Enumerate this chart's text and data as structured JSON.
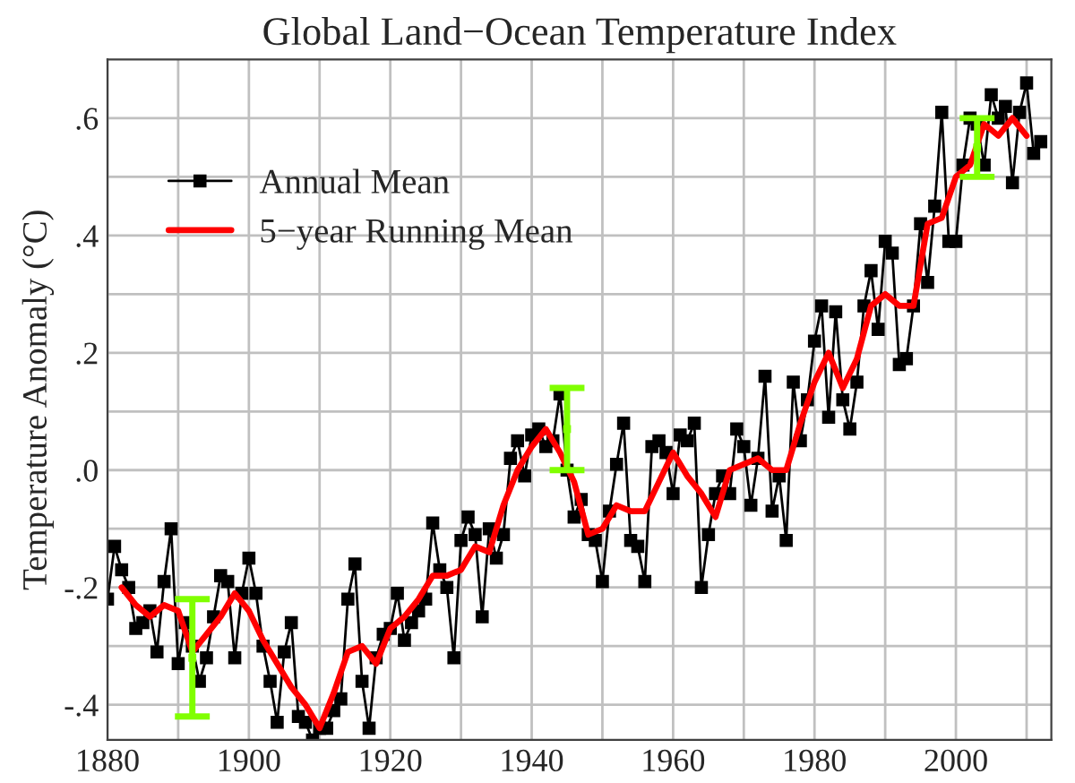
{
  "chart_data": {
    "type": "line",
    "title": "Global Land−Ocean Temperature Index",
    "ylabel": "Temperature Anomaly (°C)",
    "xlim": [
      1880,
      2013.5
    ],
    "ylim": [
      -0.46,
      0.7
    ],
    "xticks": [
      1880,
      {
        "value": 1890,
        "label": null
      },
      1900,
      {
        "value": 1910,
        "label": null
      },
      1920,
      {
        "value": 1930,
        "label": null
      },
      1940,
      {
        "value": 1950,
        "label": null
      },
      1960,
      {
        "value": 1970,
        "label": null
      },
      1980,
      {
        "value": 1990,
        "label": null
      },
      2000,
      {
        "value": 2010,
        "label": null
      }
    ],
    "yticks": [
      {
        "value": -0.4,
        "label": "-.4"
      },
      {
        "value": -0.3,
        "label": null
      },
      {
        "value": -0.2,
        "label": "-.2"
      },
      {
        "value": -0.1,
        "label": null
      },
      {
        "value": 0.0,
        "label": ".0"
      },
      {
        "value": 0.1,
        "label": null
      },
      {
        "value": 0.2,
        "label": ".2"
      },
      {
        "value": 0.3,
        "label": null
      },
      {
        "value": 0.4,
        "label": ".4"
      },
      {
        "value": 0.5,
        "label": null
      },
      {
        "value": 0.6,
        "label": ".6"
      }
    ],
    "grid": true,
    "legend": "top left",
    "series": [
      {
        "name": "Annual Mean",
        "color": "#000000",
        "marker": "square",
        "x": [
          1880,
          1881,
          1882,
          1883,
          1884,
          1885,
          1886,
          1887,
          1888,
          1889,
          1890,
          1891,
          1892,
          1893,
          1894,
          1895,
          1896,
          1897,
          1898,
          1899,
          1900,
          1901,
          1902,
          1903,
          1904,
          1905,
          1906,
          1907,
          1908,
          1909,
          1910,
          1911,
          1912,
          1913,
          1914,
          1915,
          1916,
          1917,
          1918,
          1919,
          1920,
          1921,
          1922,
          1923,
          1924,
          1925,
          1926,
          1927,
          1928,
          1929,
          1930,
          1931,
          1932,
          1933,
          1934,
          1935,
          1936,
          1937,
          1938,
          1939,
          1940,
          1941,
          1942,
          1943,
          1944,
          1945,
          1946,
          1947,
          1948,
          1949,
          1950,
          1951,
          1952,
          1953,
          1954,
          1955,
          1956,
          1957,
          1958,
          1959,
          1960,
          1961,
          1962,
          1963,
          1964,
          1965,
          1966,
          1967,
          1968,
          1969,
          1970,
          1971,
          1972,
          1973,
          1974,
          1975,
          1976,
          1977,
          1978,
          1979,
          1980,
          1981,
          1982,
          1983,
          1984,
          1985,
          1986,
          1987,
          1988,
          1989,
          1990,
          1991,
          1992,
          1993,
          1994,
          1995,
          1996,
          1997,
          1998,
          1999,
          2000,
          2001,
          2002,
          2003,
          2004,
          2005,
          2006,
          2007,
          2008,
          2009,
          2010,
          2011,
          2012
        ],
        "values": [
          -0.22,
          -0.13,
          -0.17,
          -0.2,
          -0.27,
          -0.26,
          -0.24,
          -0.31,
          -0.19,
          -0.1,
          -0.33,
          -0.26,
          -0.3,
          -0.36,
          -0.32,
          -0.25,
          -0.18,
          -0.19,
          -0.32,
          -0.21,
          -0.15,
          -0.21,
          -0.3,
          -0.36,
          -0.43,
          -0.31,
          -0.26,
          -0.42,
          -0.43,
          -0.46,
          -0.44,
          -0.44,
          -0.41,
          -0.39,
          -0.22,
          -0.16,
          -0.36,
          -0.44,
          -0.32,
          -0.28,
          -0.27,
          -0.21,
          -0.29,
          -0.26,
          -0.24,
          -0.22,
          -0.09,
          -0.17,
          -0.2,
          -0.32,
          -0.12,
          -0.08,
          -0.11,
          -0.25,
          -0.1,
          -0.15,
          -0.11,
          0.02,
          0.05,
          -0.01,
          0.06,
          0.07,
          0.04,
          0.05,
          0.13,
          0.0,
          -0.08,
          -0.05,
          -0.11,
          -0.12,
          -0.19,
          -0.07,
          0.01,
          0.08,
          -0.12,
          -0.13,
          -0.19,
          0.04,
          0.05,
          0.03,
          -0.04,
          0.06,
          0.05,
          0.08,
          -0.2,
          -0.11,
          -0.04,
          -0.01,
          -0.04,
          0.07,
          0.04,
          -0.06,
          0.02,
          0.16,
          -0.07,
          -0.01,
          -0.12,
          0.15,
          0.05,
          0.12,
          0.22,
          0.28,
          0.09,
          0.27,
          0.12,
          0.07,
          0.15,
          0.28,
          0.34,
          0.24,
          0.39,
          0.37,
          0.18,
          0.19,
          0.28,
          0.42,
          0.32,
          0.45,
          0.61,
          0.39,
          0.39,
          0.52,
          0.6,
          0.59,
          0.52,
          0.64,
          0.6,
          0.62,
          0.49,
          0.61,
          0.66,
          0.54,
          0.56
        ]
      },
      {
        "name": "5−year Running Mean",
        "color": "#ff0000",
        "marker": "none",
        "x": [
          1882,
          1884,
          1886,
          1888,
          1890,
          1892,
          1894,
          1896,
          1898,
          1900,
          1902,
          1904,
          1906,
          1908,
          1910,
          1912,
          1914,
          1916,
          1918,
          1920,
          1922,
          1924,
          1926,
          1928,
          1930,
          1932,
          1934,
          1936,
          1938,
          1940,
          1942,
          1944,
          1946,
          1948,
          1950,
          1952,
          1954,
          1956,
          1958,
          1960,
          1962,
          1964,
          1966,
          1968,
          1970,
          1972,
          1974,
          1976,
          1978,
          1980,
          1982,
          1984,
          1986,
          1988,
          1990,
          1992,
          1994,
          1996,
          1998,
          2000,
          2002,
          2004,
          2006,
          2008,
          2010
        ],
        "values": [
          -0.2,
          -0.23,
          -0.25,
          -0.23,
          -0.24,
          -0.31,
          -0.28,
          -0.25,
          -0.21,
          -0.24,
          -0.29,
          -0.33,
          -0.37,
          -0.4,
          -0.44,
          -0.38,
          -0.31,
          -0.3,
          -0.33,
          -0.27,
          -0.25,
          -0.22,
          -0.18,
          -0.18,
          -0.17,
          -0.13,
          -0.14,
          -0.06,
          0.0,
          0.04,
          0.07,
          0.03,
          -0.02,
          -0.11,
          -0.1,
          -0.06,
          -0.07,
          -0.07,
          -0.02,
          0.03,
          -0.01,
          -0.04,
          -0.08,
          0.0,
          0.01,
          0.02,
          0.0,
          0.0,
          0.08,
          0.15,
          0.2,
          0.14,
          0.19,
          0.28,
          0.3,
          0.28,
          0.28,
          0.42,
          0.43,
          0.5,
          0.52,
          0.59,
          0.57,
          0.6,
          0.57
        ]
      },
      {
        "type": "scatter",
        "color": "#80ff00",
        "marker": "square",
        "x": [
          1892,
          1945,
          2003
        ],
        "values": [
          -0.32,
          0.07,
          0.55
        ],
        "errors": [
          [
            -0.42,
            -0.22
          ],
          [
            0.0,
            0.14
          ],
          [
            0.5,
            0.6
          ]
        ]
      }
    ]
  }
}
